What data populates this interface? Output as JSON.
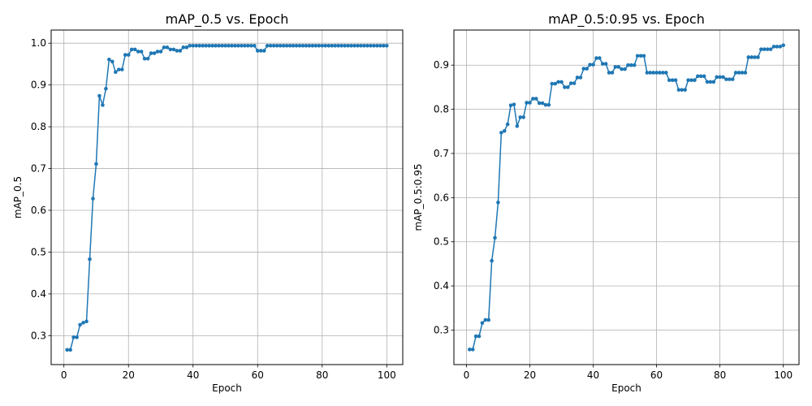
{
  "chart_data": [
    {
      "type": "line",
      "title": "mAP_0.5 vs. Epoch",
      "xlabel": "Epoch",
      "ylabel": "mAP_0.5",
      "xlim": [
        -3.95,
        104.95
      ],
      "ylim": [
        0.2307,
        1.0315
      ],
      "xticks": [
        0,
        20,
        40,
        60,
        80,
        100
      ],
      "yticks": [
        0.3,
        0.4,
        0.5,
        0.6,
        0.7,
        0.8,
        0.9,
        1.0
      ],
      "xtick_labels": [
        "0",
        "20",
        "40",
        "60",
        "80",
        "100"
      ],
      "ytick_labels": [
        "0.3",
        "0.4",
        "0.5",
        "0.6",
        "0.7",
        "0.8",
        "0.9",
        "1.0"
      ],
      "grid": true,
      "series_color": "#1f77b4",
      "series": [
        {
          "name": "mAP_0.5",
          "x": [
            1,
            2,
            3,
            4,
            5,
            6,
            7,
            8,
            9,
            10,
            11,
            12,
            13,
            14,
            15,
            16,
            17,
            18,
            19,
            20,
            21,
            22,
            23,
            24,
            25,
            26,
            27,
            28,
            29,
            30,
            31,
            32,
            33,
            34,
            35,
            36,
            37,
            38,
            39,
            40,
            41,
            42,
            43,
            44,
            45,
            46,
            47,
            48,
            49,
            50,
            51,
            52,
            53,
            54,
            55,
            56,
            57,
            58,
            59,
            60,
            61,
            62,
            63,
            64,
            65,
            66,
            67,
            68,
            69,
            70,
            71,
            72,
            73,
            74,
            75,
            76,
            77,
            78,
            79,
            80,
            81,
            82,
            83,
            84,
            85,
            86,
            87,
            88,
            89,
            90,
            91,
            92,
            93,
            94,
            95,
            96,
            97,
            98,
            99,
            100
          ],
          "values": [
            0.266,
            0.266,
            0.296,
            0.296,
            0.326,
            0.331,
            0.334,
            0.483,
            0.628,
            0.711,
            0.874,
            0.852,
            0.891,
            0.961,
            0.956,
            0.931,
            0.937,
            0.937,
            0.972,
            0.972,
            0.985,
            0.985,
            0.98,
            0.98,
            0.963,
            0.963,
            0.976,
            0.976,
            0.98,
            0.98,
            0.99,
            0.99,
            0.985,
            0.985,
            0.982,
            0.982,
            0.99,
            0.99,
            0.994,
            0.994,
            0.994,
            0.994,
            0.994,
            0.994,
            0.994,
            0.994,
            0.994,
            0.994,
            0.994,
            0.994,
            0.994,
            0.994,
            0.994,
            0.994,
            0.994,
            0.994,
            0.994,
            0.994,
            0.994,
            0.982,
            0.982,
            0.982,
            0.994,
            0.994,
            0.994,
            0.994,
            0.994,
            0.994,
            0.994,
            0.994,
            0.994,
            0.994,
            0.994,
            0.994,
            0.994,
            0.994,
            0.994,
            0.994,
            0.994,
            0.994,
            0.994,
            0.994,
            0.994,
            0.994,
            0.994,
            0.994,
            0.994,
            0.994,
            0.994,
            0.994,
            0.994,
            0.994,
            0.994,
            0.994,
            0.994,
            0.994,
            0.994,
            0.994,
            0.994,
            0.994
          ]
        }
      ]
    },
    {
      "type": "line",
      "title": "mAP_0.5:0.95 vs. Epoch",
      "xlabel": "Epoch",
      "ylabel": "mAP_0.5:0.95",
      "xlim": [
        -3.95,
        104.95
      ],
      "ylim": [
        0.2218,
        0.9795
      ],
      "xticks": [
        0,
        20,
        40,
        60,
        80,
        100
      ],
      "yticks": [
        0.3,
        0.4,
        0.5,
        0.6,
        0.7,
        0.8,
        0.9
      ],
      "xtick_labels": [
        "0",
        "20",
        "40",
        "60",
        "80",
        "100"
      ],
      "ytick_labels": [
        "0.3",
        "0.4",
        "0.5",
        "0.6",
        "0.7",
        "0.8",
        "0.9"
      ],
      "grid": true,
      "series_color": "#1f77b4",
      "series": [
        {
          "name": "mAP_0.5:0.95",
          "x": [
            1,
            2,
            3,
            4,
            5,
            6,
            7,
            8,
            9,
            10,
            11,
            12,
            13,
            14,
            15,
            16,
            17,
            18,
            19,
            20,
            21,
            22,
            23,
            24,
            25,
            26,
            27,
            28,
            29,
            30,
            31,
            32,
            33,
            34,
            35,
            36,
            37,
            38,
            39,
            40,
            41,
            42,
            43,
            44,
            45,
            46,
            47,
            48,
            49,
            50,
            51,
            52,
            53,
            54,
            55,
            56,
            57,
            58,
            59,
            60,
            61,
            62,
            63,
            64,
            65,
            66,
            67,
            68,
            69,
            70,
            71,
            72,
            73,
            74,
            75,
            76,
            77,
            78,
            79,
            80,
            81,
            82,
            83,
            84,
            85,
            86,
            87,
            88,
            89,
            90,
            91,
            92,
            93,
            94,
            95,
            96,
            97,
            98,
            99,
            100
          ],
          "values": [
            0.256,
            0.256,
            0.286,
            0.286,
            0.316,
            0.323,
            0.323,
            0.457,
            0.509,
            0.589,
            0.747,
            0.751,
            0.766,
            0.809,
            0.811,
            0.762,
            0.782,
            0.782,
            0.815,
            0.815,
            0.824,
            0.824,
            0.814,
            0.814,
            0.81,
            0.81,
            0.858,
            0.858,
            0.862,
            0.862,
            0.85,
            0.85,
            0.859,
            0.859,
            0.872,
            0.872,
            0.892,
            0.892,
            0.901,
            0.901,
            0.916,
            0.916,
            0.903,
            0.903,
            0.883,
            0.883,
            0.896,
            0.896,
            0.891,
            0.891,
            0.9,
            0.9,
            0.9,
            0.921,
            0.921,
            0.921,
            0.883,
            0.883,
            0.883,
            0.883,
            0.883,
            0.883,
            0.883,
            0.866,
            0.866,
            0.866,
            0.844,
            0.844,
            0.844,
            0.866,
            0.866,
            0.866,
            0.875,
            0.875,
            0.875,
            0.862,
            0.862,
            0.862,
            0.873,
            0.873,
            0.873,
            0.868,
            0.868,
            0.868,
            0.883,
            0.883,
            0.883,
            0.883,
            0.918,
            0.918,
            0.918,
            0.918,
            0.936,
            0.936,
            0.936,
            0.936,
            0.942,
            0.942,
            0.942,
            0.945
          ]
        }
      ]
    }
  ]
}
